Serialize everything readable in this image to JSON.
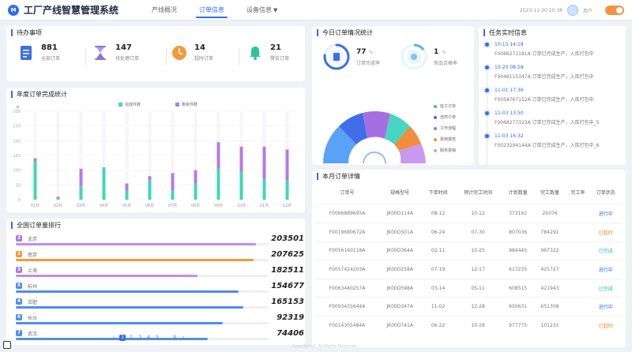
{
  "header": {
    "title": "工厂产线智慧管理系统",
    "logo_text": "M",
    "nav": [
      {
        "label": "产线概况",
        "active": false
      },
      {
        "label": "订单信息",
        "active": true
      },
      {
        "label": "设备信息",
        "active": false,
        "dropdown": true
      }
    ],
    "datetime": "2023-11-30 10:38",
    "username": "用户"
  },
  "pending": {
    "title": "待办事项",
    "items": [
      {
        "value": "881",
        "label": "全部订单",
        "icon": "document-icon",
        "color": "#3b6fe8"
      },
      {
        "value": "147",
        "label": "待处理订单",
        "icon": "hourglass-icon",
        "color": "#8f72d8"
      },
      {
        "value": "14",
        "label": "超时订单",
        "icon": "clock-icon",
        "color": "#f39a3a"
      },
      {
        "value": "21",
        "label": "警告订单",
        "icon": "bell-icon",
        "color": "#2ec3a0"
      }
    ]
  },
  "annual": {
    "title": "年度订单完成统计",
    "chart_data": {
      "type": "bar",
      "title": "年度订单完成统计",
      "ylabel": "件",
      "categories": [
        "01月",
        "02月",
        "03月",
        "04月",
        "05月",
        "06月",
        "07月",
        "08月",
        "09月",
        "10月",
        "11月",
        "12月"
      ],
      "series": [
        {
          "name": "完成件数",
          "color": "#3fd7b8",
          "values": [
            130,
            5,
            45,
            110,
            30,
            65,
            30,
            55,
            105,
            95,
            70,
            65
          ]
        },
        {
          "name": "剩余件数",
          "color": "#b57ae8",
          "values": [
            10,
            5,
            60,
            0,
            25,
            15,
            60,
            45,
            90,
            85,
            110,
            105
          ]
        }
      ],
      "ylim": [
        0,
        300
      ],
      "yticks": [
        "0",
        "50",
        "100",
        "150",
        "200",
        "250",
        "300"
      ]
    }
  },
  "ranking": {
    "title": "全国订单量排行",
    "items": [
      {
        "rank": "2",
        "city": "北京",
        "value": "203501",
        "fill": 0.95,
        "color": "#c48bef",
        "badge": "#a979e8"
      },
      {
        "rank": "1",
        "city": "南京",
        "value": "207625",
        "fill": 0.94,
        "color": "#f39a3a",
        "badge": "#f39a3a"
      },
      {
        "rank": "3",
        "city": "上海",
        "value": "182511",
        "fill": 0.72,
        "color": "#c48bef",
        "badge": "#a979e8"
      },
      {
        "rank": "5",
        "city": "杭州",
        "value": "154677",
        "fill": 0.88,
        "color": "#4e8df4",
        "badge": "#4e8df4"
      },
      {
        "rank": "4",
        "city": "合肥",
        "value": "165153",
        "fill": 0.9,
        "color": "#4e8df4",
        "badge": "#4e8df4"
      },
      {
        "rank": "6",
        "city": "长沙",
        "value": "92319",
        "fill": 0.82,
        "color": "#4e8df4",
        "badge": "#4e8df4"
      },
      {
        "rank": "7",
        "city": "武汉",
        "value": "74406",
        "fill": 0.76,
        "color": "#4e8df4",
        "badge": "#4e8df4"
      }
    ]
  },
  "today": {
    "title": "今日订单情况统计",
    "completion": {
      "value": "77",
      "unit": "%",
      "label": "订单完成率"
    },
    "defect": {
      "value": "1",
      "unit": "%",
      "label": "良品合格率"
    },
    "legend": [
      {
        "label": "延工订单",
        "color": "#5aa2f5"
      },
      {
        "label": "自然订单",
        "color": "#3f6ee8"
      },
      {
        "label": "工作流程",
        "color": "#a56fe3"
      },
      {
        "label": "费用报告",
        "color": "#f08e3b"
      },
      {
        "label": "服务报销",
        "color": "#c999ef"
      }
    ]
  },
  "tasks": {
    "title": "任务实时信息",
    "items": [
      {
        "time": "10-15 14:18",
        "desc": "F0066271181A 订单已完成生产，入库打包中"
      },
      {
        "time": "10-20 08:58",
        "desc": "F0048115347A 订单已完成生产，入库打包中"
      },
      {
        "time": "11-01 17:36",
        "desc": "F0058767152A 订单已完成生产，入库打包中"
      },
      {
        "time": "11-03 13:50",
        "desc": "F0068277323A 订单已完成生产，入库打包中_5"
      },
      {
        "time": "11-03 16:32",
        "desc": "F0023294144A 订单已完成生产，入库打包中_6"
      }
    ]
  },
  "monthly": {
    "title": "本月订单详情",
    "columns": [
      "订单号",
      "规格型号",
      "下单时间",
      "预计完工时间",
      "计划数量",
      "完工数量",
      "完工率",
      "订单状态"
    ],
    "rows": [
      [
        "F0066889695A",
        "JK00D114A",
        "08-12",
        "10-12",
        "373162",
        "25076",
        "",
        "进行中"
      ],
      [
        "F0019680672A",
        "JK00D501A",
        "06-24",
        "07-30",
        "807036",
        "784291",
        "",
        "已超时"
      ],
      [
        "F0056160118A",
        "JK00D364A",
        "02-11",
        "10-25",
        "984445",
        "967322",
        "",
        "已完成"
      ],
      [
        "F0057424203A",
        "JK00D258A",
        "07-19",
        "12-17",
        "617235",
        "425727",
        "",
        "进行中"
      ],
      [
        "F0063440257A",
        "JK00D598A",
        "03-14",
        "05-11",
        "608515",
        "421943",
        "",
        "已完成"
      ],
      [
        "F0093435644A",
        "JK00D347A",
        "11-02",
        "12-28",
        "650631",
        "651308",
        "",
        "进行中"
      ],
      [
        "F0014305484A",
        "JK00D741A",
        "06-22",
        "10-28",
        "977775",
        "101231",
        "",
        "已超时"
      ]
    ],
    "status_colors": {
      "进行中": "status-blue",
      "已超时": "status-orange",
      "已完成": "status-cyan"
    },
    "pager": [
      "‹",
      "1",
      "2",
      "3",
      "4",
      "5",
      "...",
      "9",
      "›"
    ]
  },
  "footer": "Copyright © All Rights Reserved"
}
